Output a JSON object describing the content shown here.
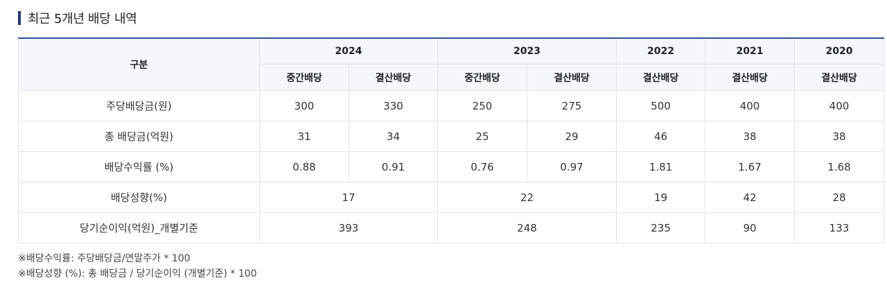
{
  "title": "최근 5개년 배당 내역",
  "table": {
    "corner": "구분",
    "years": [
      "2024",
      "2023",
      "2022",
      "2021",
      "2020"
    ],
    "subheaders": [
      "중간배당",
      "결산배당",
      "중간배당",
      "결산배당",
      "결산배당",
      "결산배당",
      "결산배당"
    ],
    "rows": [
      {
        "label": "주당배당금(원)",
        "cells": [
          "300",
          "330",
          "250",
          "275",
          "500",
          "400",
          "400"
        ]
      },
      {
        "label": "총 배당금(억원)",
        "cells": [
          "31",
          "34",
          "25",
          "29",
          "46",
          "38",
          "38"
        ]
      },
      {
        "label": "배당수익률 (%)",
        "cells": [
          "0.88",
          "0.91",
          "0.76",
          "0.97",
          "1.81",
          "1.67",
          "1.68"
        ]
      },
      {
        "label": "배당성향(%)",
        "cells": [
          "17",
          "22",
          "19",
          "42",
          "28"
        ]
      },
      {
        "label": "당기순이익(억원)_개별기준",
        "cells": [
          "393",
          "248",
          "235",
          "90",
          "133"
        ]
      }
    ]
  },
  "notes": [
    "※배당수익률: 주당배당금/연말주가 * 100",
    "※배당성향 (%): 총 배당금 / 당기순이익 (개별기준) * 100"
  ],
  "colors": {
    "accent": "#2b4f9a",
    "title_bar": "#1f3a7a",
    "header_bg": "#f5f7fa",
    "border": "#dfe3ea"
  }
}
